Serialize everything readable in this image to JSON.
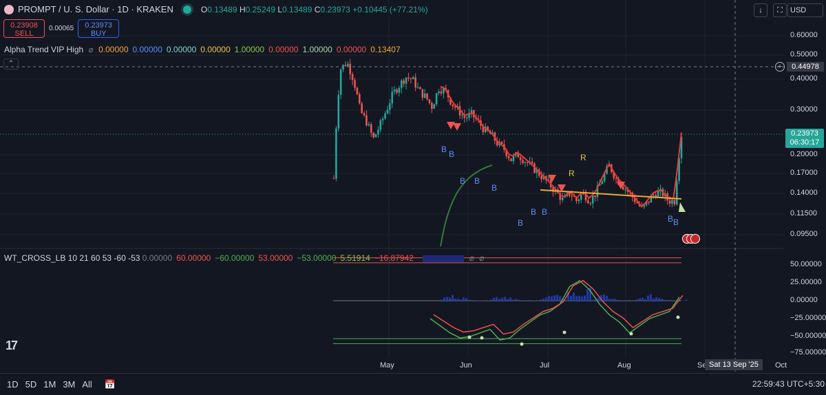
{
  "header": {
    "symbol": "PROMPT / U. S. Dollar · 1D · KRAKEN",
    "o_label": "O",
    "o": "0.13489",
    "h_label": "H",
    "h": "0.25249",
    "l_label": "L",
    "l": "0.13489",
    "c_label": "C",
    "c": "0.23973",
    "change": "+0.10445 (+77.21%)"
  },
  "trade": {
    "sell_price": "0.23908",
    "sell_label": "SELL",
    "spread": "0.00065",
    "buy_price": "0.23973",
    "buy_label": "BUY"
  },
  "indicator": {
    "name": "Alpha Trend VIP High",
    "eye": "⌀",
    "values": [
      {
        "v": "0.00000",
        "color": "#f0a830"
      },
      {
        "v": "0.00000",
        "color": "#5b8cff"
      },
      {
        "v": "0.00000",
        "color": "#7fd3d3"
      },
      {
        "v": "0.00000",
        "color": "#f0c14b"
      },
      {
        "v": "1.00000",
        "color": "#8bc34a"
      },
      {
        "v": "0.00000",
        "color": "#ef5350"
      },
      {
        "v": "1.00000",
        "color": "#a5d6a7"
      },
      {
        "v": "0.00000",
        "color": "#ef5350"
      },
      {
        "v": "0.13407",
        "color": "#f0a830"
      }
    ]
  },
  "oscillator": {
    "name": "WT_CROSS_LB 10 21 60 53 -60 -53",
    "values": [
      {
        "v": "0.00000",
        "color": "#787b86"
      },
      {
        "v": "60.00000",
        "color": "#ef5350"
      },
      {
        "v": "−60.00000",
        "color": "#4caf50"
      },
      {
        "v": "53.00000",
        "color": "#ef5350"
      },
      {
        "v": "−53.00000",
        "color": "#4caf50"
      },
      {
        "v": "5.51914",
        "color": "#8bc34a"
      },
      {
        "v": "−16.87942",
        "color": "#ef5350"
      }
    ],
    "eye": "⌀",
    "eye2": "⌀"
  },
  "toolbar": {
    "download_icon": "↓",
    "fullscreen_icon": "⛶",
    "currency": "USD",
    "collapse_icon": "⌃",
    "logo": "17"
  },
  "price_axis": {
    "labels": [
      "0.60000",
      "0.50000",
      "0.40000",
      "0.30000",
      "0.20000",
      "0.17000",
      "0.14000",
      "0.11500",
      "0.09500"
    ],
    "current_price": "0.23973",
    "countdown": "06:30:17",
    "crosshair_price": "0.44978"
  },
  "osc_axis": {
    "labels": [
      "50.00000",
      "25.00000",
      "0.00000",
      "−25.00000",
      "−50.00000",
      "−75.00000"
    ]
  },
  "time_axis": {
    "labels": [
      "May",
      "Jun",
      "Jul",
      "Aug",
      "Se",
      "Oct"
    ],
    "crosshair_date": "Sat 13 Sep '25"
  },
  "bottom": {
    "timeframes": [
      "1D",
      "5D",
      "1M",
      "3M",
      "All"
    ],
    "clock": "22:59:43 UTC+5:30"
  },
  "signals": {
    "b": "B",
    "r": "R"
  },
  "colors": {
    "bg": "#131722",
    "up": "#26a69a",
    "down": "#ef5350",
    "trend": "#f0a830",
    "ma_red": "#e53935",
    "ma_green": "#2e7d32",
    "signal_blue": "#5b8cff"
  },
  "chart_data": {
    "type": "candlestick",
    "series": [
      {
        "name": "PROMPT / U. S. Dollar",
        "approx_close": [
          0.16,
          0.44,
          0.47,
          0.4,
          0.3,
          0.27,
          0.23,
          0.26,
          0.3,
          0.35,
          0.38,
          0.41,
          0.4,
          0.36,
          0.34,
          0.31,
          0.37,
          0.36,
          0.32,
          0.3,
          0.28,
          0.29,
          0.27,
          0.25,
          0.24,
          0.22,
          0.21,
          0.19,
          0.2,
          0.19,
          0.18,
          0.17,
          0.16,
          0.15,
          0.14,
          0.13,
          0.14,
          0.13,
          0.14,
          0.13,
          0.14,
          0.16,
          0.18,
          0.16,
          0.15,
          0.14,
          0.13,
          0.12,
          0.13,
          0.14,
          0.14,
          0.13,
          0.13,
          0.24
        ]
      },
      {
        "name": "WT_CROSS_LB",
        "approx_wt1": [
          -25,
          -35,
          -45,
          -52,
          -50,
          -45,
          -40,
          -55,
          -52,
          -40,
          -30,
          -20,
          -15,
          -5,
          20,
          28,
          15,
          -5,
          -20,
          -30,
          -45,
          -35,
          -25,
          -20,
          -15,
          5
        ]
      }
    ],
    "price_axis": "log",
    "ylim": [
      0.09,
      0.65
    ],
    "osc_ylim": [
      -80,
      65
    ],
    "x_range": [
      "Apr",
      "Oct"
    ]
  }
}
